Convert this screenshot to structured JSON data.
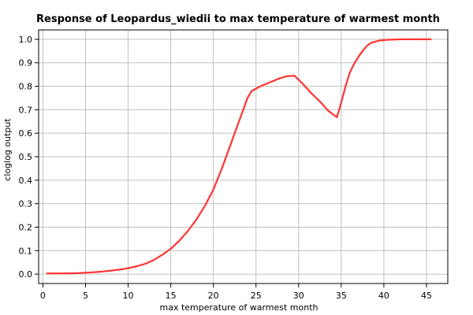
{
  "chart_data": {
    "type": "line",
    "title": "Response of Leopardus_wiedii to max temperature of warmest month",
    "xlabel": "max temperature of warmest month",
    "ylabel": "cloglog output",
    "xlim": [
      -0.5,
      47.5
    ],
    "ylim": [
      -0.04,
      1.04
    ],
    "x_ticks": [
      0,
      5,
      10,
      15,
      20,
      25,
      30,
      35,
      40,
      45
    ],
    "y_ticks": [
      0.0,
      0.1,
      0.2,
      0.3,
      0.4,
      0.5,
      0.6,
      0.7,
      0.8,
      0.9,
      1.0
    ],
    "y_tick_labels": [
      "0.0",
      "0.1",
      "0.2",
      "0.3",
      "0.4",
      "0.5",
      "0.6",
      "0.7",
      "0.8",
      "0.9",
      "1.0"
    ],
    "grid": true,
    "series": [
      {
        "color": "#ff3333",
        "x": [
          0.5,
          2,
          4,
          5,
          6,
          7,
          8,
          9,
          10,
          11,
          12,
          13,
          14,
          15,
          16,
          17,
          18,
          19,
          20,
          21,
          22,
          23,
          24,
          24.5,
          25.5,
          26.5,
          27.5,
          28.5,
          29.5,
          30.5,
          31.5,
          32.5,
          33.5,
          34.5,
          35,
          35.5,
          36,
          36.5,
          37,
          37.5,
          38,
          38.5,
          39.5,
          40.5,
          42,
          43.5,
          45.5
        ],
        "y": [
          0.003,
          0.003,
          0.004,
          0.006,
          0.008,
          0.011,
          0.015,
          0.019,
          0.025,
          0.033,
          0.044,
          0.06,
          0.082,
          0.108,
          0.142,
          0.183,
          0.232,
          0.29,
          0.36,
          0.45,
          0.55,
          0.65,
          0.75,
          0.78,
          0.8,
          0.815,
          0.83,
          0.842,
          0.845,
          0.81,
          0.77,
          0.735,
          0.695,
          0.668,
          0.73,
          0.8,
          0.858,
          0.895,
          0.925,
          0.95,
          0.972,
          0.985,
          0.995,
          0.998,
          1.0,
          1.0,
          1.0
        ]
      }
    ]
  }
}
